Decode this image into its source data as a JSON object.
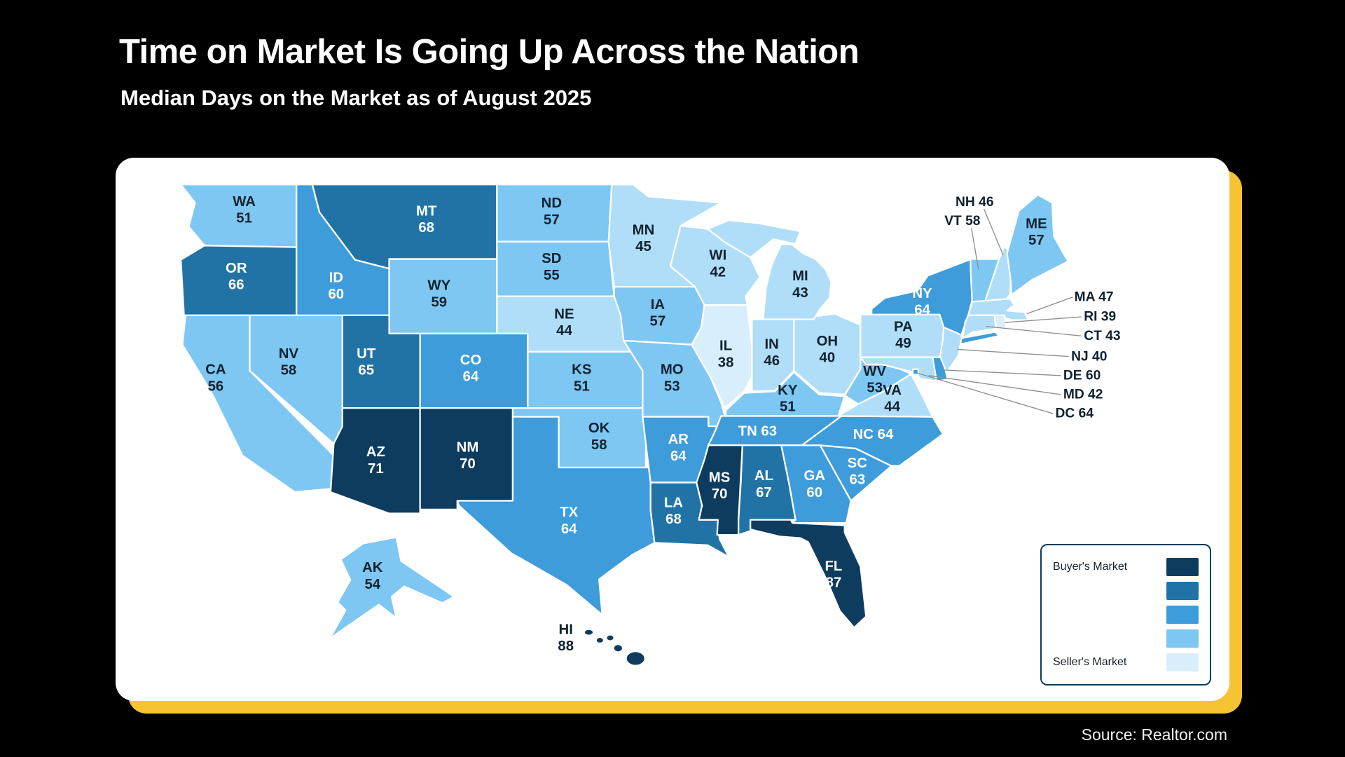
{
  "page": {
    "title": "Time on Market Is Going Up Across the Nation",
    "subtitle": "Median Days on the Market as of August 2025",
    "source": "Source: Realtor.com"
  },
  "legend": {
    "top_label": "Buyer's Market",
    "bottom_label": "Seller's Market",
    "swatch_colors": [
      "#0e3c5e",
      "#2173a6",
      "#3f9cda",
      "#7ec7f2",
      "#d8eefc"
    ],
    "border_color": "#0d3b5f"
  },
  "colors": {
    "background": "#000000",
    "card": "#ffffff",
    "accent": "#f6c332",
    "state_border": "#ffffff",
    "label_dark": "#10222f",
    "label_light": "#ffffff",
    "leader_line": "#8f8f8f"
  },
  "chart_data": {
    "type": "heatmap",
    "map": "us-states-choropleth",
    "title": "Time on Market Is Going Up Across the Nation",
    "subtitle": "Median Days on the Market as of August 2025",
    "metric": "Median days on the market",
    "as_of": "August 2025",
    "source": "Realtor.com",
    "legend_max_label": "Buyer's Market",
    "legend_min_label": "Seller's Market",
    "white_label_min": 60,
    "buckets": [
      {
        "min": 70,
        "color": "#0e3c5e"
      },
      {
        "min": 65,
        "color": "#2173a6"
      },
      {
        "min": 60,
        "color": "#3f9cda"
      },
      {
        "min": 50,
        "color": "#7ec7f2"
      },
      {
        "min": 40,
        "color": "#b0def9"
      },
      {
        "min": 0,
        "color": "#d8eefc"
      }
    ],
    "states": [
      {
        "abbr": "WA",
        "value": 51
      },
      {
        "abbr": "OR",
        "value": 66
      },
      {
        "abbr": "CA",
        "value": 56
      },
      {
        "abbr": "NV",
        "value": 58
      },
      {
        "abbr": "ID",
        "value": 60
      },
      {
        "abbr": "MT",
        "value": 68
      },
      {
        "abbr": "WY",
        "value": 59
      },
      {
        "abbr": "UT",
        "value": 65
      },
      {
        "abbr": "CO",
        "value": 64
      },
      {
        "abbr": "AZ",
        "value": 71
      },
      {
        "abbr": "NM",
        "value": 70
      },
      {
        "abbr": "ND",
        "value": 57
      },
      {
        "abbr": "SD",
        "value": 55
      },
      {
        "abbr": "NE",
        "value": 44
      },
      {
        "abbr": "KS",
        "value": 51
      },
      {
        "abbr": "OK",
        "value": 58
      },
      {
        "abbr": "TX",
        "value": 64
      },
      {
        "abbr": "MN",
        "value": 45
      },
      {
        "abbr": "IA",
        "value": 57
      },
      {
        "abbr": "MO",
        "value": 53
      },
      {
        "abbr": "AR",
        "value": 64
      },
      {
        "abbr": "LA",
        "value": 68
      },
      {
        "abbr": "WI",
        "value": 42
      },
      {
        "abbr": "IL",
        "value": 38
      },
      {
        "abbr": "IN",
        "value": 46
      },
      {
        "abbr": "OH",
        "value": 40
      },
      {
        "abbr": "MI",
        "value": 43
      },
      {
        "abbr": "KY",
        "value": 51
      },
      {
        "abbr": "TN",
        "value": 63
      },
      {
        "abbr": "MS",
        "value": 70
      },
      {
        "abbr": "AL",
        "value": 67
      },
      {
        "abbr": "GA",
        "value": 60
      },
      {
        "abbr": "FL",
        "value": 87
      },
      {
        "abbr": "SC",
        "value": 63
      },
      {
        "abbr": "NC",
        "value": 64
      },
      {
        "abbr": "VA",
        "value": 44
      },
      {
        "abbr": "WV",
        "value": 53
      },
      {
        "abbr": "PA",
        "value": 49
      },
      {
        "abbr": "NY",
        "value": 64
      },
      {
        "abbr": "VT",
        "value": 58
      },
      {
        "abbr": "NH",
        "value": 46
      },
      {
        "abbr": "ME",
        "value": 57
      },
      {
        "abbr": "MA",
        "value": 47
      },
      {
        "abbr": "RI",
        "value": 39
      },
      {
        "abbr": "CT",
        "value": 43
      },
      {
        "abbr": "NJ",
        "value": 40
      },
      {
        "abbr": "DE",
        "value": 60
      },
      {
        "abbr": "MD",
        "value": 42
      },
      {
        "abbr": "DC",
        "value": 64
      },
      {
        "abbr": "AK",
        "value": 54
      },
      {
        "abbr": "HI",
        "value": 88
      }
    ]
  }
}
